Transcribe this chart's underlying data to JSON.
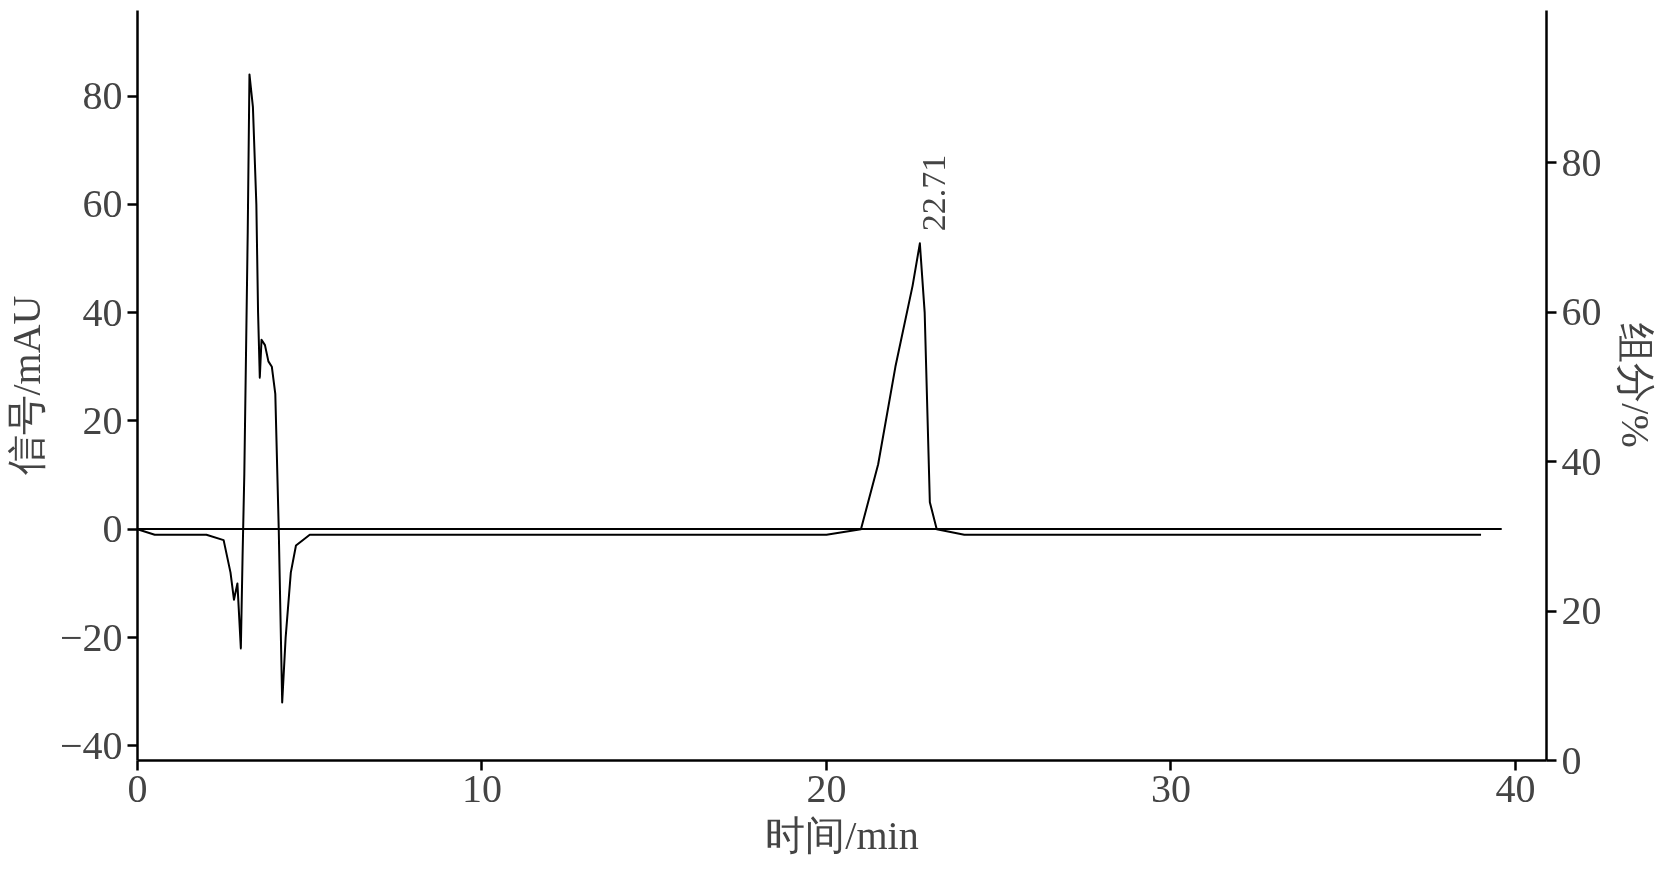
{
  "chart_data": {
    "type": "line",
    "xlabel": "时间/min",
    "ylabel": "信号/mAU",
    "y2label": "组分/%",
    "xlim": [
      0,
      40.9
    ],
    "xticks": [
      0,
      10,
      20,
      30,
      40
    ],
    "ylim": [
      -42.7,
      95.8
    ],
    "yticks": [
      {
        "value": -40,
        "label": "−40"
      },
      {
        "value": -20,
        "label": "−20"
      },
      0,
      20,
      40,
      60,
      80
    ],
    "y2lim": [
      0,
      100.4
    ],
    "y2ticks": [
      0,
      20,
      40,
      60,
      80
    ],
    "grid": false,
    "marker": "none",
    "line_style": "solid",
    "series": [
      {
        "color": "#000000",
        "x": [
          0,
          0.5,
          1.0,
          2.0,
          2.5,
          2.7,
          2.8,
          2.9,
          3.0,
          3.05,
          3.1,
          3.2,
          3.25,
          3.35,
          3.45,
          3.5,
          3.55,
          3.6,
          3.7,
          3.8,
          3.9,
          4.0,
          4.1,
          4.2,
          4.3,
          4.45,
          4.6,
          5.0,
          7.5,
          10,
          15,
          20,
          21.0,
          21.5,
          22.0,
          22.5,
          22.71,
          22.85,
          23.0,
          23.2,
          24.0,
          30,
          35,
          39.0
        ],
        "values": [
          0,
          -1,
          -1,
          -1,
          -2,
          -8,
          -13,
          -10,
          -22,
          -5,
          10,
          55,
          84,
          78,
          60,
          40,
          28,
          35,
          34,
          31,
          30,
          25,
          0,
          -32,
          -20,
          -8,
          -3,
          -1,
          -1,
          -1,
          -1,
          -1,
          0,
          12,
          30,
          45,
          52.8,
          40,
          5,
          0,
          -1,
          -1,
          -1,
          -1
        ]
      },
      {
        "color": "#000000",
        "axis": "y2",
        "x": [
          0,
          39.6
        ],
        "values": [
          31,
          31
        ]
      }
    ],
    "annotations": [
      {
        "text": "22.71",
        "x": 22.71,
        "y": 52.8
      }
    ]
  }
}
